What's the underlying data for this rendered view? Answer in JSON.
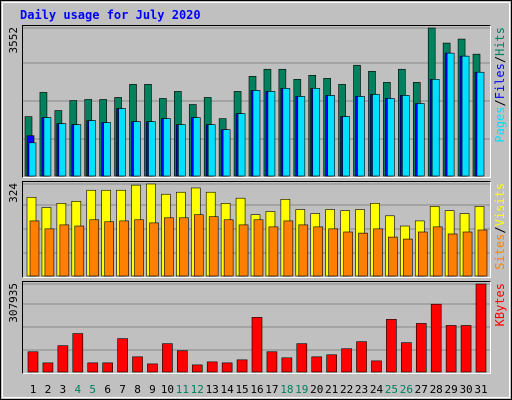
{
  "title": "Daily usage for July 2020",
  "categories": [
    "1",
    "2",
    "3",
    "4",
    "5",
    "6",
    "7",
    "8",
    "9",
    "10",
    "11",
    "12",
    "13",
    "14",
    "15",
    "16",
    "17",
    "18",
    "19",
    "20",
    "21",
    "22",
    "23",
    "24",
    "25",
    "26",
    "27",
    "28",
    "29",
    "30",
    "31"
  ],
  "category_colors": [
    "#000000",
    "#000000",
    "#000000",
    "#00805c",
    "#00805c",
    "#000000",
    "#000000",
    "#000000",
    "#000000",
    "#000000",
    "#00805c",
    "#00805c",
    "#000000",
    "#000000",
    "#000000",
    "#000000",
    "#000000",
    "#00805c",
    "#00805c",
    "#000000",
    "#000000",
    "#000000",
    "#000000",
    "#000000",
    "#00805c",
    "#00805c",
    "#000000",
    "#000000",
    "#000000",
    "#000000",
    "#000000"
  ],
  "chart_data": [
    {
      "type": "bar",
      "ylim": [
        0,
        3552
      ],
      "yticks": [
        3552
      ],
      "series": [
        {
          "name": "Hits",
          "color": "#00805c",
          "values": [
            1426,
            2006,
            1571,
            1812,
            1837,
            1837,
            1885,
            2199,
            2199,
            1861,
            2030,
            1716,
            1885,
            1378,
            2030,
            2392,
            2562,
            2562,
            2320,
            2417,
            2344,
            2199,
            2658,
            2513,
            2247,
            2562,
            2247,
            3552,
            3190,
            3286,
            2924
          ]
        },
        {
          "name": "Files",
          "color": "#0000ff",
          "values": [
            967,
            1402,
            1257,
            1233,
            1329,
            1281,
            1619,
            1305,
            1305,
            1378,
            1233,
            1402,
            1233,
            1112,
            1498,
            2054,
            2030,
            2103,
            1909,
            2103,
            1933,
            1426,
            1909,
            1957,
            1861,
            1933,
            1740,
            2320,
            2948,
            2876,
            2490
          ]
        },
        {
          "name": "Pages",
          "color": "#00e0ff",
          "values": [
            797,
            1402,
            1257,
            1233,
            1329,
            1281,
            1619,
            1305,
            1305,
            1378,
            1233,
            1402,
            1233,
            1112,
            1498,
            2054,
            2030,
            2103,
            1909,
            2103,
            1933,
            1426,
            1909,
            1957,
            1861,
            1933,
            1740,
            2320,
            2948,
            2876,
            2490
          ]
        }
      ]
    },
    {
      "type": "bar",
      "ylim": [
        0,
        324
      ],
      "yticks": [
        324
      ],
      "series": [
        {
          "name": "Visits",
          "color": "#ffff00",
          "values": [
            277,
            241,
            256,
            263,
            302,
            302,
            302,
            320,
            324,
            288,
            295,
            310,
            295,
            256,
            274,
            216,
            227,
            270,
            234,
            220,
            234,
            230,
            234,
            256,
            212,
            176,
            194,
            245,
            230,
            220,
            245
          ]
        },
        {
          "name": "Sites",
          "color": "#ff8000",
          "values": [
            194,
            166,
            180,
            176,
            198,
            191,
            194,
            198,
            187,
            205,
            205,
            216,
            209,
            198,
            180,
            198,
            173,
            194,
            180,
            173,
            166,
            155,
            151,
            166,
            137,
            130,
            155,
            173,
            148,
            155,
            162
          ]
        }
      ]
    },
    {
      "type": "bar",
      "ylim": [
        0,
        307935
      ],
      "yticks": [
        307935
      ],
      "series": [
        {
          "name": "KBytes",
          "color": "#ff0000",
          "values": [
            70800,
            31900,
            92000,
            134500,
            31900,
            31900,
            116800,
            53100,
            28300,
            99100,
            74300,
            24800,
            35400,
            31900,
            42500,
            191200,
            70800,
            49600,
            99100,
            53100,
            60200,
            81400,
            106200,
            38900,
            184100,
            102700,
            169900,
            237200,
            162800,
            162800,
            307935
          ]
        }
      ]
    }
  ]
}
